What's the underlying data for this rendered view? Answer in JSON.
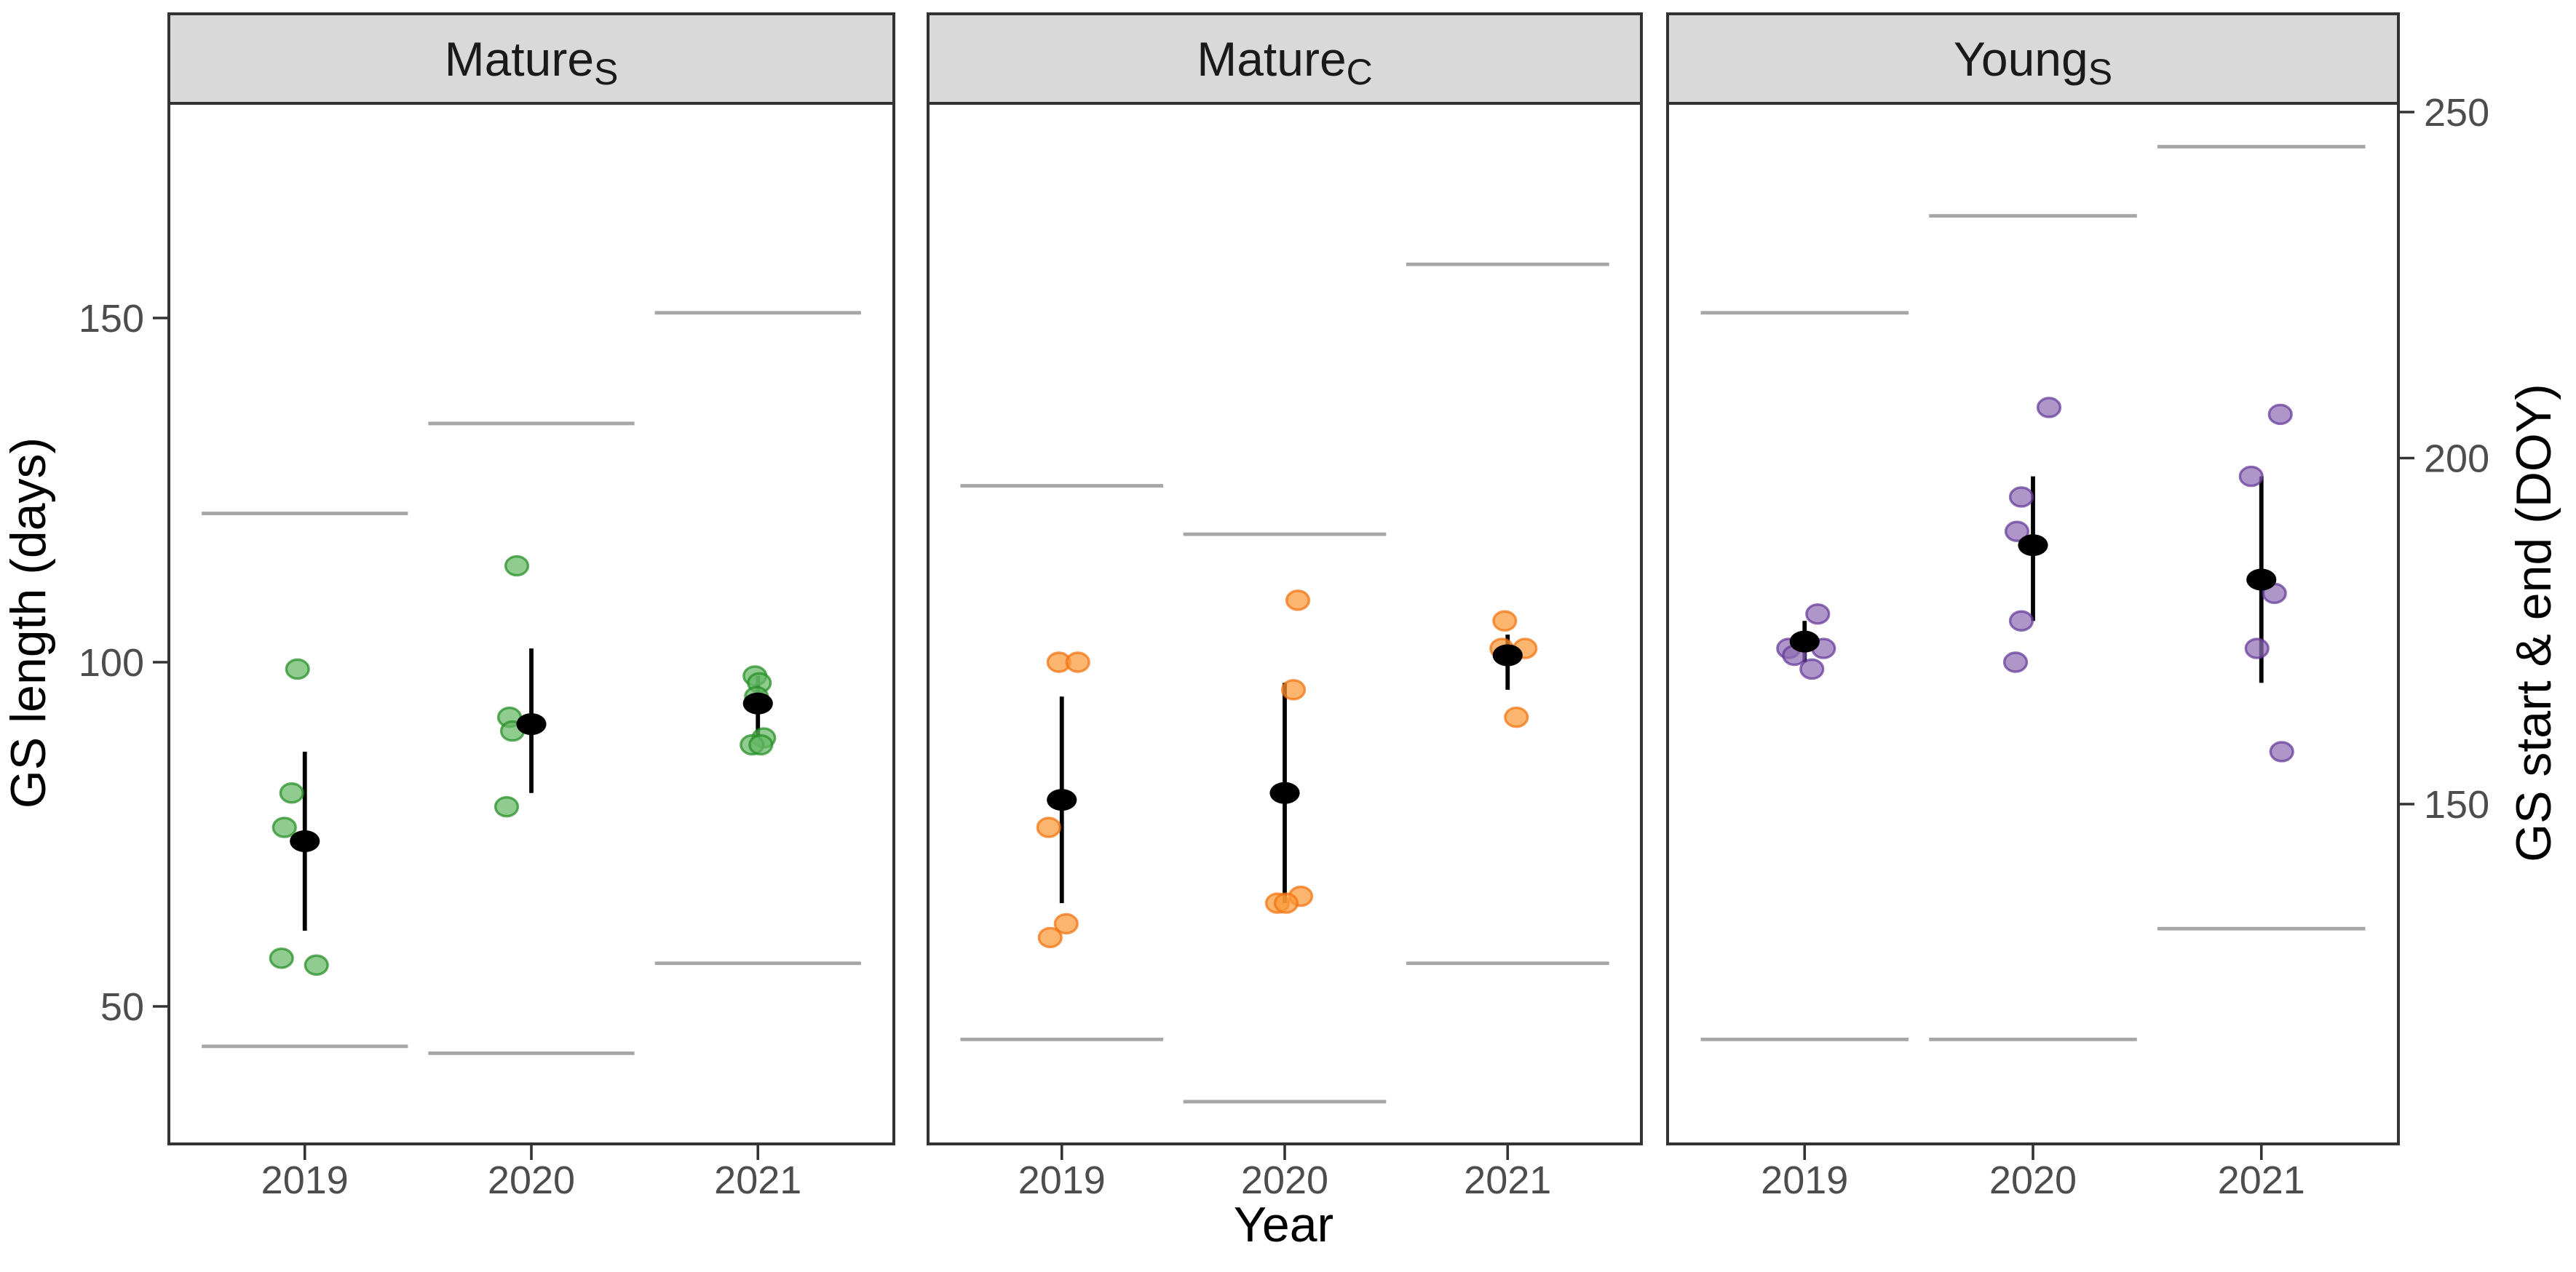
{
  "chart_data": {
    "type": "scatter",
    "faceted": true,
    "title": "",
    "xlabel": "Year",
    "ylabel_left": "GS length (days)",
    "ylabel_right": "GS start & end (DOY)",
    "x_categories": [
      "2019",
      "2020",
      "2021"
    ],
    "left_axis": {
      "ticks": [
        150,
        100,
        50
      ],
      "range": [
        30,
        182
      ]
    },
    "right_axis": {
      "ticks": [
        250,
        200,
        150
      ],
      "range": [
        101,
        252
      ]
    },
    "grid": false,
    "legend": "none",
    "colors": {
      "mean_point": "#000000",
      "error_bar": "#000000",
      "gs_segment": "#a6a6a6",
      "panel_border": "#333333",
      "facet_header_bg": "#d9d9d9"
    },
    "facets": [
      {
        "name": "Mature_S",
        "label": "Mature",
        "subscript": "S",
        "point_fill": "#65B765",
        "point_stroke": "#238E23",
        "years": [
          {
            "year": "2019",
            "points": [
              99,
              81,
              76,
              57,
              56
            ],
            "jitter": [
              -5,
              -9,
              -14,
              -16,
              8
            ],
            "mean": 74,
            "ci": [
              61,
              87
            ],
            "gs_start_doy": 115,
            "gs_end_doy": 192
          },
          {
            "year": "2020",
            "points": [
              114,
              92,
              90,
              79
            ],
            "jitter": [
              -10,
              -15,
              -13,
              -17
            ],
            "mean": 91,
            "ci": [
              81,
              102
            ],
            "gs_start_doy": 114,
            "gs_end_doy": 205
          },
          {
            "year": "2021",
            "points": [
              98,
              97,
              95,
              89,
              88,
              88
            ],
            "jitter": [
              -2,
              1,
              -1,
              4,
              -4,
              2
            ],
            "mean": 94,
            "ci": [
              89,
              98
            ],
            "gs_start_doy": 127,
            "gs_end_doy": 221
          }
        ]
      },
      {
        "name": "Mature_C",
        "label": "Mature",
        "subscript": "C",
        "point_fill": "#FA9837",
        "point_stroke": "#F2720C",
        "years": [
          {
            "year": "2019",
            "points": [
              100,
              100,
              76,
              62,
              60
            ],
            "jitter": [
              -2,
              11,
              -9,
              3,
              -8
            ],
            "mean": 80,
            "ci": [
              65,
              95
            ],
            "gs_start_doy": 116,
            "gs_end_doy": 196
          },
          {
            "year": "2020",
            "points": [
              109,
              96,
              66,
              65,
              65
            ],
            "jitter": [
              9,
              6,
              11,
              -5,
              1
            ],
            "mean": 81,
            "ci": [
              65,
              97
            ],
            "gs_start_doy": 107,
            "gs_end_doy": 189
          },
          {
            "year": "2021",
            "points": [
              106,
              102,
              102,
              92
            ],
            "jitter": [
              -2,
              12,
              -4,
              6
            ],
            "mean": 101,
            "ci": [
              96,
              104
            ],
            "gs_start_doy": 127,
            "gs_end_doy": 228
          }
        ]
      },
      {
        "name": "Young_S",
        "label": "Young",
        "subscript": "S",
        "point_fill": "#8F6EB4",
        "point_stroke": "#643898",
        "years": [
          {
            "year": "2019",
            "points": [
              107,
              102,
              102,
              101,
              99
            ],
            "jitter": [
              9,
              -11,
              13,
              -7,
              5
            ],
            "mean": 103,
            "ci": [
              100,
              106
            ],
            "gs_start_doy": 116,
            "gs_end_doy": 221
          },
          {
            "year": "2020",
            "points": [
              137,
              124,
              119,
              106,
              100
            ],
            "jitter": [
              11,
              -8,
              -11,
              -8,
              -12
            ],
            "mean": 117,
            "ci": [
              106,
              127
            ],
            "gs_start_doy": 116,
            "gs_end_doy": 235
          },
          {
            "year": "2021",
            "points": [
              136,
              127,
              110,
              102,
              87
            ],
            "jitter": [
              13,
              -7,
              9,
              -3,
              14
            ],
            "mean": 112,
            "ci": [
              97,
              127
            ],
            "gs_start_doy": 132,
            "gs_end_doy": 245
          }
        ]
      }
    ]
  }
}
